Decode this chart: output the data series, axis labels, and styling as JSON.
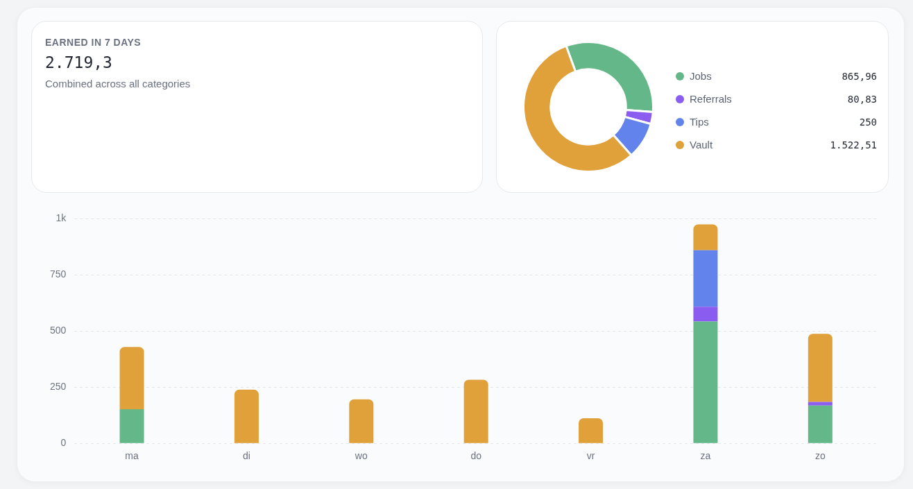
{
  "chart_data": [
    {
      "type": "other",
      "title": "EARNED IN 7 DAYS",
      "subtitle": "2.719,3",
      "annotations": [
        "Combined across all categories"
      ]
    },
    {
      "type": "donut",
      "categories": [
        "Jobs",
        "Referrals",
        "Tips",
        "Vault"
      ],
      "values": [
        865.96,
        80.83,
        250,
        1522.51
      ],
      "colors": [
        "#63b788",
        "#8b5cf0",
        "#6283ec",
        "#e0a03a"
      ],
      "value_labels": [
        "865,96",
        "80,83",
        "250",
        "1.522,51"
      ],
      "legend": "right"
    },
    {
      "type": "bar",
      "stacked": true,
      "categories": [
        "ma",
        "di",
        "wo",
        "do",
        "vr",
        "za",
        "zo"
      ],
      "series": [
        {
          "color": "#63b788",
          "values": [
            152,
            null,
            null,
            null,
            null,
            543,
            168
          ]
        },
        {
          "color": "#8b5cf0",
          "values": [
            null,
            null,
            null,
            null,
            null,
            65,
            16
          ]
        },
        {
          "color": "#6283ec",
          "values": [
            null,
            null,
            null,
            null,
            null,
            252,
            null
          ]
        },
        {
          "color": "#e0a03a",
          "values": [
            277,
            239,
            196,
            283,
            112,
            115,
            304
          ]
        }
      ],
      "ylim": [
        0,
        1000
      ],
      "yticks": [
        0,
        250,
        500,
        750,
        {
          "value": 1000,
          "label": "1k"
        }
      ],
      "grid": "y",
      "legend": false
    }
  ]
}
